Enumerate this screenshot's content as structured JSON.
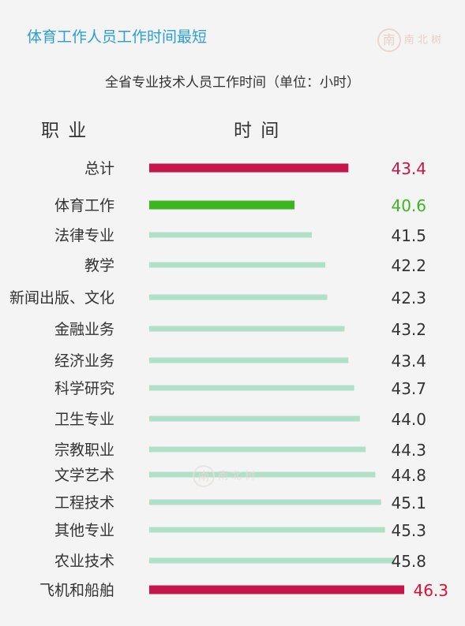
{
  "header": {
    "title": "体育工作人员工作时间最短"
  },
  "chart_data": {
    "type": "bar",
    "orientation": "horizontal",
    "subtitle": "全省专业技术人员工作时间（单位：小时）",
    "column_headers": {
      "category": "职 业",
      "value": "时 间"
    },
    "categories": [
      "总计",
      "体育工作",
      "法律专业",
      "教学",
      "新闻出版、文化",
      "金融业务",
      "经济业务",
      "科学研究",
      "卫生专业",
      "宗教职业",
      "文学艺术",
      "工程技术",
      "其他专业",
      "农业技术",
      "飞机和船舶"
    ],
    "values": [
      43.4,
      40.6,
      41.5,
      42.2,
      42.3,
      43.2,
      43.4,
      43.7,
      44.0,
      44.3,
      44.8,
      45.1,
      45.3,
      45.8,
      46.3
    ],
    "value_labels": [
      "43.4",
      "40.6",
      "41.5",
      "42.2",
      "42.3",
      "43.2",
      "43.4",
      "43.7",
      "44.0",
      "44.3",
      "44.8",
      "45.1",
      "45.3",
      "45.8",
      "46.3"
    ],
    "bar_colors": [
      "#c5154a",
      "#3cb521",
      "#b0e0c8",
      "#b0e0c8",
      "#b0e0c8",
      "#b0e0c8",
      "#b0e0c8",
      "#b0e0c8",
      "#b0e0c8",
      "#b0e0c8",
      "#b0e0c8",
      "#b0e0c8",
      "#b0e0c8",
      "#b0e0c8",
      "#c5154a"
    ],
    "label_colors": [
      "#c5154a",
      "#3cb521",
      "#333333",
      "#333333",
      "#333333",
      "#333333",
      "#333333",
      "#333333",
      "#333333",
      "#333333",
      "#333333",
      "#333333",
      "#333333",
      "#333333",
      "#e01030"
    ]
  }
}
